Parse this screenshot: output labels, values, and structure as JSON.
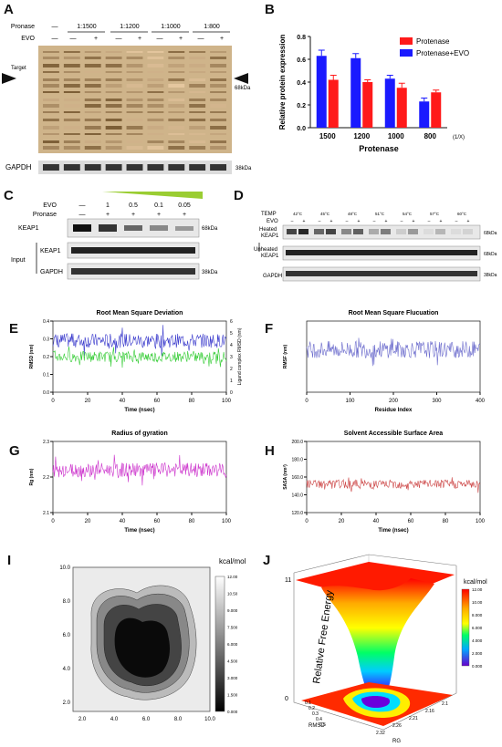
{
  "panels": {
    "A": {
      "label": "A",
      "pronase_label": "Pronase",
      "evo_label": "EVO",
      "pronase_groups": [
        "—",
        "1:1500",
        "1:1200",
        "1:1000",
        "1:800"
      ],
      "evo_marks": [
        "—",
        "—",
        "+",
        "—",
        "+",
        "—",
        "+",
        "—",
        "+"
      ],
      "target_label": "Target",
      "kda_label": "68kDa",
      "gapdh_label": "GAPDH",
      "gapdh_kda": "38kDa"
    },
    "B": {
      "label": "B",
      "legend": [
        "Protenase",
        "Protenase+EVO"
      ],
      "unit_note": "(1/X)"
    },
    "C": {
      "label": "C",
      "evo_label": "EVO",
      "pronase_label": "Pronase",
      "evo_values": [
        "—",
        "1",
        "0.5",
        "0.1",
        "0.05"
      ],
      "pronase_marks": [
        "—",
        "+",
        "+",
        "+",
        "+"
      ],
      "keap1_label": "KEAP1",
      "input_label": "Input",
      "keap1_input_label": "KEAP1",
      "gapdh_label": "GAPDH",
      "kda68": "68kDa",
      "kda38": "38kDa"
    },
    "D": {
      "label": "D",
      "temp_label": "TEMP",
      "evo_label": "EVO",
      "temps": [
        "42°C",
        "45°C",
        "48°C",
        "51°C",
        "54°C",
        "57°C",
        "60°C"
      ],
      "heated_label_1": "Heated",
      "heated_label_2": "KEAP1",
      "unheated_label_1": "Unheated",
      "unheated_label_2": "KEAP1",
      "gapdh_label": "GAPDH",
      "kda68a": "68kDa",
      "kda68b": "68kDa",
      "kda38": "38kDa"
    },
    "E": {
      "label": "E",
      "y2label": "Ligand complex RMSD (nm)"
    },
    "F": {
      "label": "F"
    },
    "G": {
      "label": "G"
    },
    "H": {
      "label": "H"
    },
    "I": {
      "label": "I",
      "colorbar_title": "kcal/mol"
    },
    "J": {
      "label": "J",
      "colorbar_title": "kcal/mol"
    }
  },
  "chart_data": [
    {
      "id": "B",
      "type": "bar",
      "categories": [
        "1500",
        "1200",
        "1000",
        "800"
      ],
      "series": [
        {
          "name": "Protenase",
          "color": "#ff1a1a",
          "values": [
            0.42,
            0.4,
            0.35,
            0.31
          ],
          "errors": [
            0.04,
            0.02,
            0.04,
            0.02
          ]
        },
        {
          "name": "Protenase+EVO",
          "color": "#1a1aff",
          "values": [
            0.63,
            0.61,
            0.43,
            0.23
          ],
          "errors": [
            0.05,
            0.04,
            0.03,
            0.03
          ]
        }
      ],
      "title": "",
      "xlabel": "Protenase",
      "ylabel": "Relative protein expression",
      "ylim": [
        0,
        0.8
      ],
      "yticks": [
        "0.0",
        "0.2",
        "0.4",
        "0.6",
        "0.8"
      ],
      "legend_position": "top-right"
    },
    {
      "id": "E",
      "type": "line",
      "title": "Root Mean Square Deviation",
      "xlabel": "Time (nsec)",
      "ylabel": "RMSD (nm)",
      "xlim": [
        0,
        100
      ],
      "ylim": [
        0.0,
        0.4
      ],
      "xticks": [
        "0",
        "20",
        "40",
        "60",
        "80",
        "100"
      ],
      "yticks": [
        "0.0",
        "0.1",
        "0.2",
        "0.3",
        "0.4"
      ],
      "y2ticks": [
        "0",
        "1",
        "2",
        "3",
        "4",
        "5",
        "6"
      ],
      "series": [
        {
          "color": "#3a3acc",
          "mean": 0.29,
          "noise": 0.04
        },
        {
          "color": "#33cc33",
          "mean": 0.2,
          "noise": 0.03
        }
      ]
    },
    {
      "id": "F",
      "type": "line",
      "title": "Root Mean Square Flucuation",
      "xlabel": "Residue Index",
      "ylabel": "RMSF (nm)",
      "xlim": [
        0,
        400
      ],
      "ylim": [
        0.0,
        1.0
      ],
      "xticks": [
        "0",
        "100",
        "200",
        "300",
        "400"
      ],
      "yticks": [],
      "series": [
        {
          "color": "#6a6acc",
          "mean": 0.6,
          "noise": 0.12
        }
      ]
    },
    {
      "id": "G",
      "type": "line",
      "title": "Radius of gyration",
      "xlabel": "Time (nsec)",
      "ylabel": "Rg (nm)",
      "xlim": [
        0,
        100
      ],
      "ylim": [
        2.1,
        2.3
      ],
      "xticks": [
        "0",
        "20",
        "40",
        "60",
        "80",
        "100"
      ],
      "yticks": [
        "2.1",
        "2.2",
        "2.3"
      ],
      "series": [
        {
          "color": "#cc33cc",
          "mean": 2.22,
          "noise": 0.02
        }
      ]
    },
    {
      "id": "H",
      "type": "line",
      "title": "Solvent Accessible Surface Area",
      "xlabel": "Time (nsec)",
      "ylabel": "SASA (nm²)",
      "xlim": [
        0,
        100
      ],
      "ylim": [
        120,
        200
      ],
      "xticks": [
        "0",
        "20",
        "40",
        "60",
        "80",
        "100"
      ],
      "yticks": [
        "120.0",
        "140.0",
        "160.0",
        "180.0",
        "200.0"
      ],
      "series": [
        {
          "color": "#cc4444",
          "mean": 152,
          "noise": 5
        }
      ]
    },
    {
      "id": "I",
      "type": "heatmap",
      "xticks": [
        "2.0",
        "4.0",
        "6.0",
        "8.0",
        "10.0"
      ],
      "yticks": [
        "2.0",
        "4.0",
        "6.0",
        "8.0",
        "10.0"
      ],
      "colorbar_ticks": [
        "12.00",
        "10.50",
        "9.000",
        "7.500",
        "6.000",
        "4.500",
        "3.000",
        "1.500",
        "0.000"
      ]
    },
    {
      "id": "J",
      "type": "heatmap",
      "ylabel": "Relative Free Energy",
      "xlabel": "RG",
      "zlabel": "RMSD",
      "zticks_left": [
        "0",
        "11"
      ],
      "rmsd_ticks": [
        "0.1",
        "0.2",
        "0.3",
        "0.4",
        "0.5"
      ],
      "rg_ticks": [
        "2.32",
        "2.26",
        "2.21",
        "2.16",
        "2.1"
      ],
      "colorbar_ticks": [
        "12.00",
        "10.00",
        "8.000",
        "6.000",
        "4.000",
        "2.000",
        "0.000"
      ]
    }
  ]
}
